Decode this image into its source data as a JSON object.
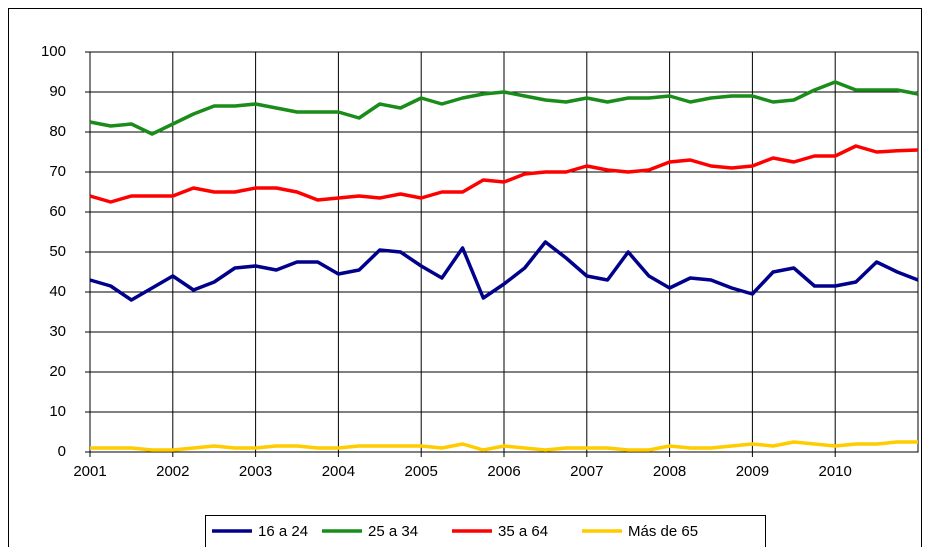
{
  "chart_data": {
    "type": "line",
    "x": [
      2001,
      2001.25,
      2001.5,
      2001.75,
      2002,
      2002.25,
      2002.5,
      2002.75,
      2003,
      2003.25,
      2003.5,
      2003.75,
      2004,
      2004.25,
      2004.5,
      2004.75,
      2005,
      2005.25,
      2005.5,
      2005.75,
      2006,
      2006.25,
      2006.5,
      2006.75,
      2007,
      2007.25,
      2007.5,
      2007.75,
      2008,
      2008.25,
      2008.5,
      2008.75,
      2009,
      2009.25,
      2009.5,
      2009.75,
      2010,
      2010.25,
      2010.5,
      2010.75,
      2011
    ],
    "series": [
      {
        "name": "16 a 24",
        "color": "#00008b",
        "values": [
          43,
          41.5,
          38,
          41,
          44,
          40.5,
          42.5,
          46,
          46.5,
          45.5,
          47.5,
          47.5,
          44.5,
          45.5,
          50.5,
          50,
          46.5,
          43.5,
          51,
          38.5,
          42,
          46,
          52.5,
          48.5,
          44,
          43,
          50,
          44,
          41,
          43.5,
          43,
          41,
          39.5,
          45,
          46,
          41.5,
          41.5,
          42.5,
          47.5,
          45,
          43
        ]
      },
      {
        "name": "25 a 34",
        "color": "#1a8c1a",
        "values": [
          82.5,
          81.5,
          82,
          79.5,
          82,
          84.5,
          86.5,
          86.5,
          87,
          86,
          85,
          85,
          85,
          83.5,
          87,
          86,
          88.5,
          87,
          88.5,
          89.5,
          90,
          89,
          88,
          87.5,
          88.5,
          87.5,
          88.5,
          88.5,
          89,
          87.5,
          88.5,
          89,
          89,
          87.5,
          88,
          90.5,
          92.5,
          90.5,
          90.5,
          90.5,
          89.5
        ]
      },
      {
        "name": "35 a 64",
        "color": "#ff0000",
        "values": [
          64,
          62.5,
          64,
          64,
          64,
          66,
          65,
          65,
          66,
          66,
          65,
          63,
          63.5,
          64,
          63.5,
          64.5,
          63.5,
          65,
          65,
          68,
          67.5,
          69.5,
          70,
          70,
          71.5,
          70.5,
          70,
          70.5,
          72.5,
          73,
          71.5,
          71,
          71.5,
          73.5,
          72.5,
          74,
          74,
          76.5,
          75,
          75.3,
          75.5
        ]
      },
      {
        "name": "Más de 65",
        "color": "#ffcc00",
        "values": [
          1,
          1,
          1,
          0.5,
          0.5,
          1,
          1.5,
          1,
          1,
          1.5,
          1.5,
          1,
          1,
          1.5,
          1.5,
          1.5,
          1.5,
          1,
          2,
          0.5,
          1.5,
          1,
          0.5,
          1,
          1,
          1,
          0.5,
          0.5,
          1.5,
          1,
          1,
          1.5,
          2,
          1.5,
          2.5,
          2,
          1.5,
          2,
          2,
          2.5,
          2.5
        ]
      }
    ],
    "xlim": [
      2001,
      2011
    ],
    "xticks": [
      2001,
      2002,
      2003,
      2004,
      2005,
      2006,
      2007,
      2008,
      2009,
      2010
    ],
    "ylim": [
      0,
      100
    ],
    "yticks": [
      0,
      10,
      20,
      30,
      40,
      50,
      60,
      70,
      80,
      90,
      100
    ],
    "grid": true,
    "legend": "bottom"
  }
}
